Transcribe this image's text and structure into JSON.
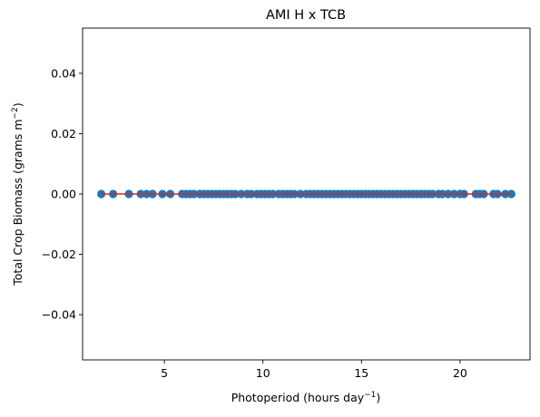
{
  "chart_data": {
    "type": "scatter",
    "title": "AMI H x TCB",
    "xlabel": "Photoperiod (hours day",
    "xlabel_sup": "−1",
    "xlabel_end": ")",
    "ylabel": "Total Crop Biomass (grams m",
    "ylabel_sup": "−2",
    "ylabel_end": ")",
    "xlim": [
      0.85,
      23.55
    ],
    "ylim": [
      -0.055,
      0.055
    ],
    "xticks": [
      5,
      10,
      15,
      20
    ],
    "xtick_labels": [
      "5",
      "10",
      "15",
      "20"
    ],
    "yticks": [
      -0.04,
      -0.02,
      0.0,
      0.02,
      0.04
    ],
    "ytick_labels": [
      "−0.04",
      "−0.02",
      "0.00",
      "0.02",
      "0.04"
    ],
    "grid": false,
    "point_color": "#1f77b4",
    "fit_line_color": "#d62728",
    "fit_line": {
      "x": [
        1.8,
        22.6
      ],
      "y": [
        0,
        0
      ]
    },
    "points": {
      "x": [
        1.8,
        2.4,
        3.2,
        3.8,
        4.1,
        4.4,
        4.9,
        5.3,
        5.9,
        6.1,
        6.3,
        6.5,
        6.8,
        7.0,
        7.2,
        7.4,
        7.6,
        7.8,
        8.0,
        8.2,
        8.4,
        8.6,
        8.9,
        9.2,
        9.4,
        9.7,
        9.9,
        10.1,
        10.3,
        10.5,
        10.8,
        11.0,
        11.2,
        11.4,
        11.6,
        11.9,
        12.2,
        12.4,
        12.6,
        12.8,
        13.0,
        13.2,
        13.4,
        13.6,
        13.8,
        14.0,
        14.2,
        14.4,
        14.6,
        14.8,
        15.0,
        15.2,
        15.4,
        15.6,
        15.8,
        16.0,
        16.2,
        16.4,
        16.6,
        16.8,
        17.0,
        17.2,
        17.4,
        17.6,
        17.8,
        18.0,
        18.2,
        18.4,
        18.6,
        18.9,
        19.1,
        19.4,
        19.7,
        20.0,
        20.2,
        20.8,
        21.0,
        21.2,
        21.7,
        21.9,
        22.3,
        22.6
      ],
      "y": [
        0,
        0,
        0,
        0,
        0,
        0,
        0,
        0,
        0,
        0,
        0,
        0,
        0,
        0,
        0,
        0,
        0,
        0,
        0,
        0,
        0,
        0,
        0,
        0,
        0,
        0,
        0,
        0,
        0,
        0,
        0,
        0,
        0,
        0,
        0,
        0,
        0,
        0,
        0,
        0,
        0,
        0,
        0,
        0,
        0,
        0,
        0,
        0,
        0,
        0,
        0,
        0,
        0,
        0,
        0,
        0,
        0,
        0,
        0,
        0,
        0,
        0,
        0,
        0,
        0,
        0,
        0,
        0,
        0,
        0,
        0,
        0,
        0,
        0,
        0,
        0,
        0,
        0,
        0,
        0,
        0,
        0
      ]
    }
  }
}
